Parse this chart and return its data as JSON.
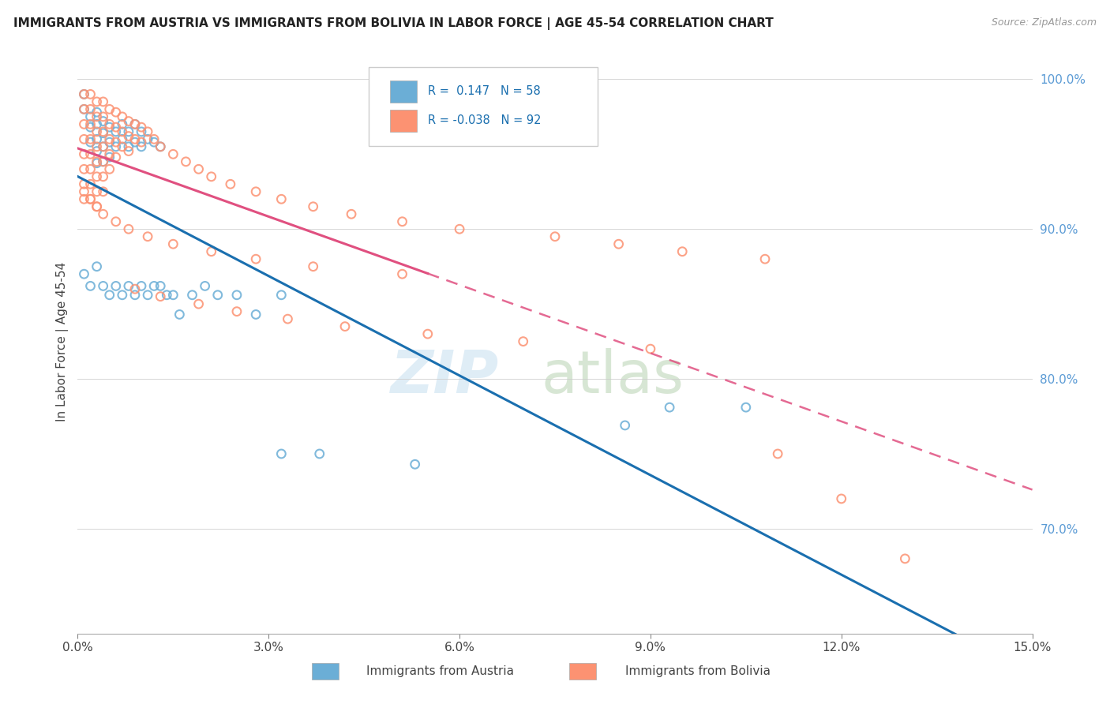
{
  "title": "IMMIGRANTS FROM AUSTRIA VS IMMIGRANTS FROM BOLIVIA IN LABOR FORCE | AGE 45-54 CORRELATION CHART",
  "source": "Source: ZipAtlas.com",
  "ylabel_label": "In Labor Force | Age 45-54",
  "legend_label1": "Immigrants from Austria",
  "legend_label2": "Immigrants from Bolivia",
  "R_austria": 0.147,
  "N_austria": 58,
  "R_bolivia": -0.038,
  "N_bolivia": 92,
  "xlim": [
    0.0,
    0.15
  ],
  "ylim": [
    0.63,
    1.02
  ],
  "xtick_vals": [
    0.0,
    0.03,
    0.06,
    0.09,
    0.12,
    0.15
  ],
  "xtick_labels": [
    "0.0%",
    "3.0%",
    "6.0%",
    "9.0%",
    "12.0%",
    "15.0%"
  ],
  "ytick_vals": [
    0.7,
    0.8,
    0.9,
    1.0
  ],
  "ytick_labels": [
    "70.0%",
    "80.0%",
    "90.0%",
    "100.0%"
  ],
  "color_austria": "#6baed6",
  "color_bolivia": "#fc9272",
  "trend_austria": "#1a6faf",
  "trend_bolivia": "#e05080",
  "austria_x": [
    0.001,
    0.001,
    0.002,
    0.002,
    0.002,
    0.003,
    0.003,
    0.003,
    0.003,
    0.003,
    0.004,
    0.004,
    0.004,
    0.004,
    0.005,
    0.005,
    0.005,
    0.006,
    0.006,
    0.007,
    0.007,
    0.008,
    0.008,
    0.009,
    0.009,
    0.01,
    0.01,
    0.011,
    0.012,
    0.013,
    0.001,
    0.002,
    0.003,
    0.004,
    0.005,
    0.006,
    0.007,
    0.008,
    0.009,
    0.01,
    0.011,
    0.012,
    0.013,
    0.014,
    0.015,
    0.016,
    0.018,
    0.02,
    0.022,
    0.025,
    0.028,
    0.032,
    0.038,
    0.053,
    0.086,
    0.093,
    0.105,
    0.032
  ],
  "austria_y": [
    0.99,
    0.98,
    0.975,
    0.968,
    0.958,
    0.978,
    0.97,
    0.96,
    0.952,
    0.944,
    0.972,
    0.964,
    0.955,
    0.945,
    0.968,
    0.958,
    0.948,
    0.965,
    0.955,
    0.97,
    0.96,
    0.965,
    0.955,
    0.97,
    0.958,
    0.965,
    0.955,
    0.96,
    0.958,
    0.955,
    0.87,
    0.862,
    0.875,
    0.862,
    0.856,
    0.862,
    0.856,
    0.862,
    0.856,
    0.862,
    0.856,
    0.862,
    0.862,
    0.856,
    0.856,
    0.843,
    0.856,
    0.862,
    0.856,
    0.856,
    0.843,
    0.856,
    0.75,
    0.743,
    0.769,
    0.781,
    0.781,
    0.75
  ],
  "bolivia_x": [
    0.001,
    0.001,
    0.001,
    0.001,
    0.001,
    0.001,
    0.001,
    0.001,
    0.002,
    0.002,
    0.002,
    0.002,
    0.002,
    0.002,
    0.002,
    0.002,
    0.003,
    0.003,
    0.003,
    0.003,
    0.003,
    0.003,
    0.003,
    0.003,
    0.004,
    0.004,
    0.004,
    0.004,
    0.004,
    0.004,
    0.004,
    0.005,
    0.005,
    0.005,
    0.005,
    0.005,
    0.006,
    0.006,
    0.006,
    0.006,
    0.007,
    0.007,
    0.007,
    0.008,
    0.008,
    0.008,
    0.009,
    0.009,
    0.01,
    0.01,
    0.011,
    0.012,
    0.013,
    0.015,
    0.017,
    0.019,
    0.021,
    0.024,
    0.028,
    0.032,
    0.037,
    0.043,
    0.051,
    0.06,
    0.075,
    0.085,
    0.095,
    0.108,
    0.051,
    0.037,
    0.028,
    0.021,
    0.015,
    0.011,
    0.008,
    0.006,
    0.004,
    0.003,
    0.002,
    0.001,
    0.009,
    0.013,
    0.019,
    0.025,
    0.033,
    0.042,
    0.055,
    0.07,
    0.09,
    0.11,
    0.12,
    0.13
  ],
  "bolivia_y": [
    0.99,
    0.98,
    0.97,
    0.96,
    0.95,
    0.94,
    0.93,
    0.92,
    0.99,
    0.98,
    0.97,
    0.96,
    0.95,
    0.94,
    0.93,
    0.92,
    0.985,
    0.975,
    0.965,
    0.955,
    0.945,
    0.935,
    0.925,
    0.915,
    0.985,
    0.975,
    0.965,
    0.955,
    0.945,
    0.935,
    0.925,
    0.98,
    0.97,
    0.96,
    0.95,
    0.94,
    0.978,
    0.968,
    0.958,
    0.948,
    0.975,
    0.965,
    0.955,
    0.972,
    0.962,
    0.952,
    0.97,
    0.96,
    0.968,
    0.958,
    0.965,
    0.96,
    0.955,
    0.95,
    0.945,
    0.94,
    0.935,
    0.93,
    0.925,
    0.92,
    0.915,
    0.91,
    0.905,
    0.9,
    0.895,
    0.89,
    0.885,
    0.88,
    0.87,
    0.875,
    0.88,
    0.885,
    0.89,
    0.895,
    0.9,
    0.905,
    0.91,
    0.915,
    0.92,
    0.925,
    0.86,
    0.855,
    0.85,
    0.845,
    0.84,
    0.835,
    0.83,
    0.825,
    0.82,
    0.75,
    0.72,
    0.68
  ]
}
